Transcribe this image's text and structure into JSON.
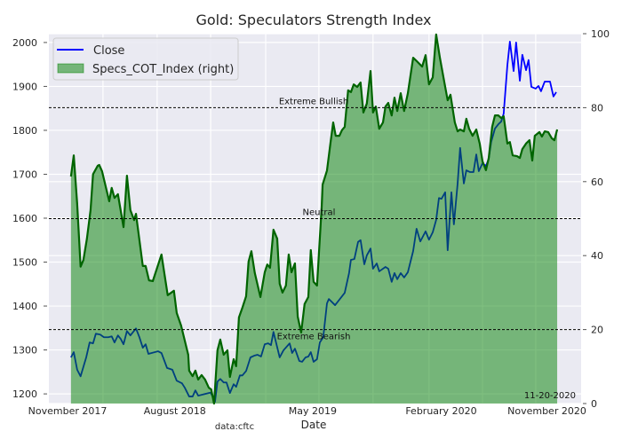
{
  "chart_data": {
    "type": "line",
    "title": "Gold: Speculators Strength Index",
    "xlabel": "Date",
    "ylabel": "",
    "x_unit": "weeks since first report",
    "xlim": [
      -7.1,
      164
    ],
    "ylim_left": [
      1178,
      2020
    ],
    "ylim_right": [
      0,
      100
    ],
    "x_ticks": [
      {
        "x": -1.1,
        "label": "November 2017"
      },
      {
        "x": 33.4,
        "label": "August 2018"
      },
      {
        "x": 77.7,
        "label": "May 2019"
      },
      {
        "x": 119,
        "label": "February 2020"
      },
      {
        "x": 153,
        "label": "November 2020"
      }
    ],
    "x_gridlines": [
      10.3,
      27.7,
      44.9,
      62.6,
      79.7,
      97.1,
      115.1,
      132.3,
      149.4
    ],
    "y_left_ticks": [
      1200,
      1300,
      1400,
      1500,
      1600,
      1700,
      1800,
      1900,
      2000
    ],
    "y_right_ticks": [
      0,
      20,
      40,
      60,
      80,
      100
    ],
    "grid": true,
    "legend": {
      "placement": "top-left",
      "entries": [
        "Close",
        "Specs_COT_Index (right)"
      ]
    },
    "reference_lines": [
      {
        "y": 80,
        "label": "Extreme Bullish"
      },
      {
        "y": 50,
        "label": "Neutral"
      },
      {
        "y": 20,
        "label": "Extreme Bearish"
      }
    ],
    "annotations": {
      "date": "11-20-2020",
      "source": "data:cftc"
    },
    "series": [
      {
        "name": "Close",
        "axis": "left",
        "color": "#0000ff",
        "points": [
          [
            0,
            1283
          ],
          [
            0.9,
            1295
          ],
          [
            2,
            1255
          ],
          [
            3.1,
            1240
          ],
          [
            4.9,
            1283
          ],
          [
            6,
            1317
          ],
          [
            7.1,
            1315
          ],
          [
            8,
            1337
          ],
          [
            9.4,
            1335
          ],
          [
            10.6,
            1329
          ],
          [
            12,
            1329
          ],
          [
            13.1,
            1331
          ],
          [
            14,
            1317
          ],
          [
            15.1,
            1333
          ],
          [
            16,
            1325
          ],
          [
            16.9,
            1313
          ],
          [
            18,
            1343
          ],
          [
            19.1,
            1333
          ],
          [
            20.9,
            1349
          ],
          [
            22,
            1329
          ],
          [
            23.1,
            1305
          ],
          [
            24,
            1313
          ],
          [
            24.9,
            1291
          ],
          [
            28,
            1297
          ],
          [
            29.1,
            1293
          ],
          [
            30.9,
            1259
          ],
          [
            32.6,
            1255
          ],
          [
            34,
            1230
          ],
          [
            35.7,
            1224
          ],
          [
            36.6,
            1214
          ],
          [
            38,
            1194
          ],
          [
            39.1,
            1194
          ],
          [
            40,
            1208
          ],
          [
            40.9,
            1196
          ],
          [
            44.9,
            1203
          ],
          [
            46.3,
            1182
          ],
          [
            47.1,
            1228
          ],
          [
            48,
            1234
          ],
          [
            49.1,
            1226
          ],
          [
            50,
            1226
          ],
          [
            51.1,
            1202
          ],
          [
            52.3,
            1222
          ],
          [
            53.1,
            1216
          ],
          [
            54.3,
            1242
          ],
          [
            55.1,
            1242
          ],
          [
            56.3,
            1252
          ],
          [
            57.7,
            1283
          ],
          [
            58.9,
            1287
          ],
          [
            60,
            1289
          ],
          [
            61.1,
            1285
          ],
          [
            62.3,
            1313
          ],
          [
            63.4,
            1315
          ],
          [
            64.3,
            1311
          ],
          [
            65.1,
            1341
          ],
          [
            67.1,
            1283
          ],
          [
            68.3,
            1299
          ],
          [
            70.3,
            1315
          ],
          [
            71.1,
            1293
          ],
          [
            72,
            1303
          ],
          [
            73.4,
            1275
          ],
          [
            74.3,
            1273
          ],
          [
            75.4,
            1283
          ],
          [
            76.3,
            1285
          ],
          [
            77.1,
            1295
          ],
          [
            78,
            1273
          ],
          [
            79.1,
            1279
          ],
          [
            80,
            1317
          ],
          [
            81.1,
            1329
          ],
          [
            82.3,
            1406
          ],
          [
            82.9,
            1416
          ],
          [
            84.9,
            1402
          ],
          [
            88,
            1430
          ],
          [
            89.4,
            1475
          ],
          [
            90,
            1505
          ],
          [
            91.1,
            1507
          ],
          [
            92.3,
            1546
          ],
          [
            93.1,
            1550
          ],
          [
            94.3,
            1495
          ],
          [
            95.1,
            1515
          ],
          [
            96.3,
            1531
          ],
          [
            97.1,
            1485
          ],
          [
            98.3,
            1497
          ],
          [
            99.1,
            1479
          ],
          [
            101.1,
            1489
          ],
          [
            102,
            1485
          ],
          [
            103.1,
            1455
          ],
          [
            104,
            1475
          ],
          [
            104.9,
            1461
          ],
          [
            106,
            1475
          ],
          [
            107.1,
            1465
          ],
          [
            108.3,
            1477
          ],
          [
            110,
            1525
          ],
          [
            111.1,
            1576
          ],
          [
            112.3,
            1547
          ],
          [
            114,
            1570
          ],
          [
            115.1,
            1551
          ],
          [
            116.3,
            1568
          ],
          [
            117.4,
            1596
          ],
          [
            118.3,
            1646
          ],
          [
            119.1,
            1644
          ],
          [
            120.3,
            1659
          ],
          [
            121.1,
            1527
          ],
          [
            122.3,
            1659
          ],
          [
            123.1,
            1586
          ],
          [
            124.3,
            1679
          ],
          [
            125.1,
            1760
          ],
          [
            126.3,
            1679
          ],
          [
            127.1,
            1709
          ],
          [
            128.3,
            1705
          ],
          [
            129.4,
            1705
          ],
          [
            130.3,
            1745
          ],
          [
            131.1,
            1707
          ],
          [
            132.3,
            1725
          ],
          [
            133.4,
            1719
          ],
          [
            134.3,
            1735
          ],
          [
            135.1,
            1774
          ],
          [
            136.3,
            1804
          ],
          [
            137.4,
            1814
          ],
          [
            138.3,
            1820
          ],
          [
            139.1,
            1838
          ],
          [
            140.3,
            1949
          ],
          [
            141.1,
            2002
          ],
          [
            142.3,
            1935
          ],
          [
            143.1,
            2000
          ],
          [
            144.3,
            1913
          ],
          [
            145.1,
            1972
          ],
          [
            146.3,
            1937
          ],
          [
            147.1,
            1960
          ],
          [
            148,
            1899
          ],
          [
            149.4,
            1895
          ],
          [
            150.3,
            1901
          ],
          [
            151.1,
            1889
          ],
          [
            152.3,
            1911
          ],
          [
            154,
            1911
          ],
          [
            155.1,
            1877
          ],
          [
            156,
            1887
          ]
        ]
      },
      {
        "name": "Specs_COT_Index (right)",
        "axis": "right",
        "color": "#006400",
        "fill": "#008000",
        "points": [
          [
            0,
            61.4
          ],
          [
            0.9,
            67.1
          ],
          [
            2,
            54
          ],
          [
            3.1,
            37
          ],
          [
            4,
            38.8
          ],
          [
            5.1,
            44.4
          ],
          [
            6.3,
            52.3
          ],
          [
            7.1,
            62
          ],
          [
            8.6,
            64.3
          ],
          [
            9.1,
            64.5
          ],
          [
            10,
            62.8
          ],
          [
            12.3,
            54.7
          ],
          [
            13.1,
            58.3
          ],
          [
            14,
            55.6
          ],
          [
            15.1,
            56.6
          ],
          [
            16.9,
            47.7
          ],
          [
            18,
            61.6
          ],
          [
            19.1,
            52.3
          ],
          [
            20.3,
            49.6
          ],
          [
            20.9,
            51.3
          ],
          [
            23.1,
            37.2
          ],
          [
            24,
            37.2
          ],
          [
            25.1,
            33.3
          ],
          [
            26.3,
            33.1
          ],
          [
            29.1,
            40.3
          ],
          [
            31.1,
            29.3
          ],
          [
            33.1,
            30.5
          ],
          [
            34,
            24.5
          ],
          [
            35.4,
            21.1
          ],
          [
            37.7,
            13.2
          ],
          [
            38,
            8.9
          ],
          [
            39.1,
            7.4
          ],
          [
            40,
            8.9
          ],
          [
            40.9,
            6.5
          ],
          [
            42,
            7.7
          ],
          [
            43.1,
            6.5
          ],
          [
            44.3,
            4.3
          ],
          [
            45.1,
            3.8
          ],
          [
            46,
            0
          ],
          [
            47.1,
            14.4
          ],
          [
            48,
            17.3
          ],
          [
            49.1,
            13.2
          ],
          [
            50.3,
            14.4
          ],
          [
            51.1,
            7.2
          ],
          [
            52.3,
            12
          ],
          [
            53.1,
            10.1
          ],
          [
            54,
            23.3
          ],
          [
            55.1,
            25.9
          ],
          [
            56.3,
            29
          ],
          [
            57.1,
            38.4
          ],
          [
            58,
            41.2
          ],
          [
            59.1,
            35.3
          ],
          [
            60.9,
            28.8
          ],
          [
            62.3,
            35.5
          ],
          [
            63.1,
            37.6
          ],
          [
            64,
            36.7
          ],
          [
            65.1,
            47
          ],
          [
            66.3,
            44.6
          ],
          [
            67.1,
            32.4
          ],
          [
            68,
            30
          ],
          [
            69.1,
            31.9
          ],
          [
            70,
            40.3
          ],
          [
            70.9,
            35.5
          ],
          [
            72,
            37.9
          ],
          [
            72.9,
            23.5
          ],
          [
            74,
            19.2
          ],
          [
            75.1,
            26.9
          ],
          [
            76.3,
            28.8
          ],
          [
            77.1,
            41.5
          ],
          [
            78,
            32.9
          ],
          [
            79.1,
            31.9
          ],
          [
            80.6,
            53.2
          ],
          [
            80.9,
            59.2
          ],
          [
            82.3,
            63
          ],
          [
            83.4,
            70.3
          ],
          [
            84.3,
            76
          ],
          [
            85.1,
            72.4
          ],
          [
            86.3,
            72.4
          ],
          [
            87.1,
            73.9
          ],
          [
            88,
            74.8
          ],
          [
            89.1,
            84.7
          ],
          [
            90,
            84.2
          ],
          [
            90.9,
            86.3
          ],
          [
            92,
            85.6
          ],
          [
            93.1,
            86.8
          ],
          [
            94,
            78.7
          ],
          [
            95.1,
            81.1
          ],
          [
            96.3,
            89.9
          ],
          [
            97.1,
            78.7
          ],
          [
            98,
            80.3
          ],
          [
            99.1,
            74.3
          ],
          [
            100.3,
            76
          ],
          [
            101.1,
            80.3
          ],
          [
            102,
            81.3
          ],
          [
            103.1,
            77.9
          ],
          [
            104,
            82.7
          ],
          [
            104.9,
            79.1
          ],
          [
            106,
            83.9
          ],
          [
            107.1,
            79.1
          ],
          [
            108.3,
            83.9
          ],
          [
            110,
            93.5
          ],
          [
            110.9,
            92.8
          ],
          [
            112.9,
            91.1
          ],
          [
            114,
            94.2
          ],
          [
            115.1,
            86.3
          ],
          [
            116.3,
            88.2
          ],
          [
            117.4,
            99.8
          ],
          [
            118.6,
            93.5
          ],
          [
            120,
            87
          ],
          [
            121.1,
            82
          ],
          [
            122,
            83.5
          ],
          [
            123.4,
            76
          ],
          [
            124.3,
            73.6
          ],
          [
            125.1,
            74.1
          ],
          [
            126.3,
            73.6
          ],
          [
            127.1,
            77
          ],
          [
            128,
            74.3
          ],
          [
            129.1,
            72.4
          ],
          [
            130.3,
            74.1
          ],
          [
            131.4,
            70.3
          ],
          [
            132.3,
            65.5
          ],
          [
            133.4,
            63.1
          ],
          [
            134.3,
            66.4
          ],
          [
            135.4,
            74.8
          ],
          [
            136.3,
            77.9
          ],
          [
            137.4,
            77.9
          ],
          [
            138.3,
            77.2
          ],
          [
            139.1,
            77.7
          ],
          [
            140.3,
            70.3
          ],
          [
            141.1,
            70.7
          ],
          [
            142,
            67.1
          ],
          [
            143.4,
            66.9
          ],
          [
            144.3,
            66.4
          ],
          [
            145.1,
            68.8
          ],
          [
            146.3,
            70.3
          ],
          [
            147.4,
            71.2
          ],
          [
            148.3,
            65.7
          ],
          [
            149.1,
            72.4
          ],
          [
            150.6,
            73.4
          ],
          [
            151.4,
            72.2
          ],
          [
            152.3,
            73.6
          ],
          [
            153.4,
            73.4
          ],
          [
            154.6,
            71.7
          ],
          [
            155.4,
            71.2
          ],
          [
            156.3,
            74.1
          ]
        ]
      }
    ]
  }
}
